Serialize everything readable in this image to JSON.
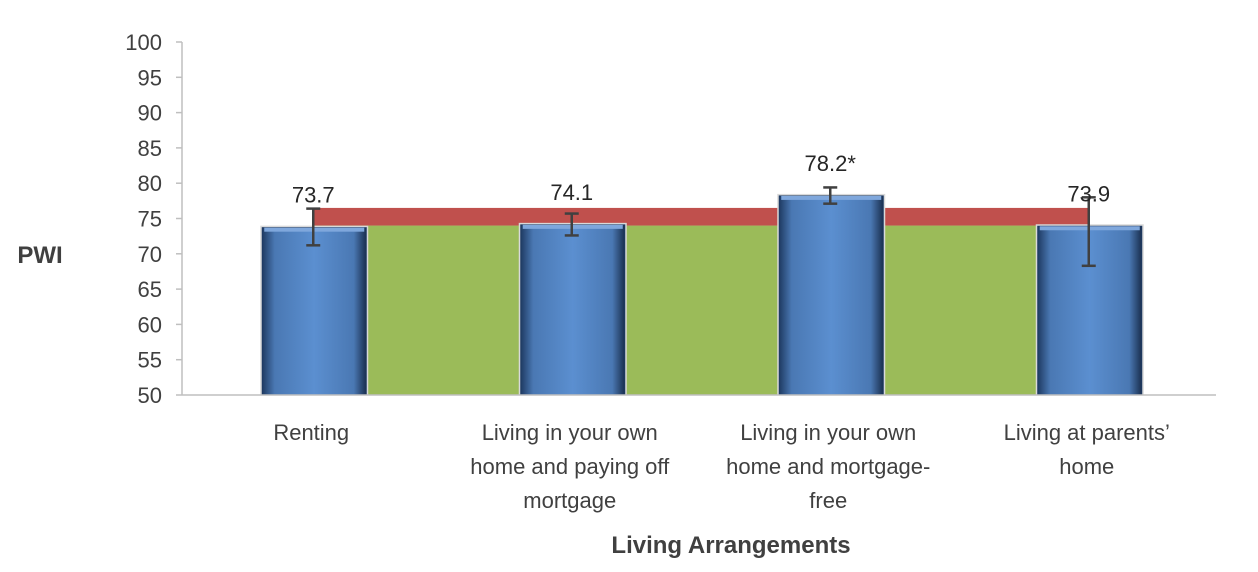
{
  "chart_data": {
    "type": "bar",
    "title": "",
    "xlabel": "Living Arrangements",
    "ylabel": "PWI",
    "ylim": [
      50,
      100
    ],
    "yticks": [
      50,
      55,
      60,
      65,
      70,
      75,
      80,
      85,
      90,
      95,
      100
    ],
    "categories": [
      [
        "Renting"
      ],
      [
        "Living in your own",
        "home and paying off",
        "mortgage"
      ],
      [
        "Living in your own",
        "home and mortgage-",
        "free"
      ],
      [
        "Living at parents’",
        "home"
      ]
    ],
    "values": [
      73.7,
      74.1,
      78.2,
      73.9
    ],
    "data_labels": [
      "73.7",
      "74.1",
      "78.2*",
      "73.9"
    ],
    "error_bars": [
      {
        "low": 71.2,
        "high": 76.4
      },
      {
        "low": 72.6,
        "high": 75.7
      },
      {
        "low": 77.1,
        "high": 79.4
      },
      {
        "low": 68.3,
        "high": 78.0
      }
    ],
    "normative_range": {
      "low": 74.0,
      "high": 76.5
    },
    "grid": false,
    "colors": {
      "bar": "#4f81bd",
      "bar_edge": "#1f3b63",
      "band_green": "#9bbb59",
      "band_red": "#c0504d",
      "error": "#404040",
      "axis": "#bfbfbf"
    }
  }
}
